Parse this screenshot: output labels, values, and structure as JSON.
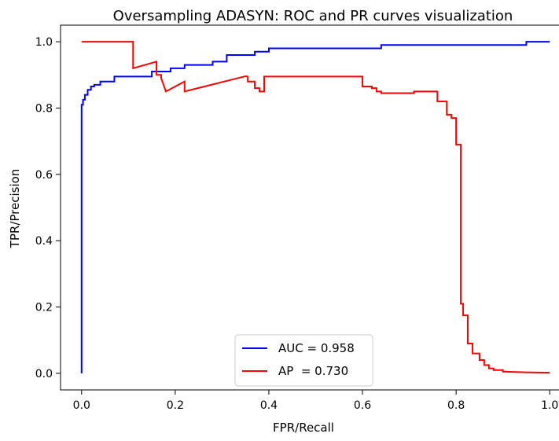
{
  "chart_data": {
    "type": "line",
    "title": "Oversampling ADASYN: ROC and PR curves visualization",
    "xlabel": "FPR/Recall",
    "ylabel": "TPR/Precision",
    "xlim": [
      -0.045,
      1.045
    ],
    "ylim": [
      -0.05,
      1.05
    ],
    "xticks": [
      0.0,
      0.2,
      0.4,
      0.6,
      0.8,
      1.0
    ],
    "xtick_labels": [
      "0.0",
      "0.2",
      "0.4",
      "0.6",
      "0.8",
      "1.0"
    ],
    "yticks": [
      0.0,
      0.2,
      0.4,
      0.6,
      0.8,
      1.0
    ],
    "ytick_labels": [
      "0.0",
      "0.2",
      "0.4",
      "0.6",
      "0.8",
      "1.0"
    ],
    "grid": false,
    "legend_position": "lower-center",
    "series": [
      {
        "name": "AUC = 0.958",
        "color": "#0000ff",
        "step": false,
        "x": [
          0.0,
          0.0,
          0.003,
          0.003,
          0.007,
          0.007,
          0.013,
          0.013,
          0.02,
          0.02,
          0.027,
          0.027,
          0.04,
          0.04,
          0.07,
          0.07,
          0.15,
          0.15,
          0.19,
          0.19,
          0.22,
          0.22,
          0.28,
          0.28,
          0.31,
          0.31,
          0.37,
          0.37,
          0.4,
          0.4,
          0.64,
          0.64,
          0.95,
          0.95,
          1.0
        ],
        "y": [
          0.0,
          0.81,
          0.81,
          0.825,
          0.825,
          0.84,
          0.84,
          0.855,
          0.855,
          0.865,
          0.865,
          0.87,
          0.87,
          0.88,
          0.88,
          0.895,
          0.895,
          0.91,
          0.91,
          0.92,
          0.92,
          0.93,
          0.93,
          0.94,
          0.94,
          0.96,
          0.96,
          0.97,
          0.97,
          0.98,
          0.98,
          0.99,
          0.99,
          1.0,
          1.0
        ]
      },
      {
        "name": "AP  = 0.730",
        "color": "#ff0000",
        "step": false,
        "x": [
          0.0,
          0.11,
          0.11,
          0.16,
          0.16,
          0.17,
          0.17,
          0.18,
          0.18,
          0.22,
          0.22,
          0.35,
          0.355,
          0.355,
          0.37,
          0.37,
          0.38,
          0.38,
          0.39,
          0.39,
          0.6,
          0.6,
          0.62,
          0.62,
          0.63,
          0.63,
          0.64,
          0.64,
          0.71,
          0.71,
          0.76,
          0.76,
          0.78,
          0.78,
          0.79,
          0.79,
          0.8,
          0.8,
          0.81,
          0.81,
          0.815,
          0.815,
          0.825,
          0.825,
          0.835,
          0.835,
          0.85,
          0.85,
          0.86,
          0.86,
          0.87,
          0.87,
          0.88,
          0.88,
          0.9,
          0.9,
          0.95,
          1.0
        ],
        "y": [
          1.0,
          1.0,
          0.92,
          0.94,
          0.9,
          0.9,
          0.89,
          0.85,
          0.85,
          0.88,
          0.85,
          0.896,
          0.895,
          0.88,
          0.88,
          0.86,
          0.86,
          0.85,
          0.85,
          0.895,
          0.895,
          0.865,
          0.865,
          0.86,
          0.86,
          0.85,
          0.85,
          0.845,
          0.845,
          0.85,
          0.85,
          0.82,
          0.82,
          0.78,
          0.78,
          0.77,
          0.77,
          0.69,
          0.69,
          0.21,
          0.21,
          0.175,
          0.175,
          0.09,
          0.09,
          0.06,
          0.06,
          0.04,
          0.04,
          0.025,
          0.025,
          0.015,
          0.015,
          0.01,
          0.01,
          0.005,
          0.003,
          0.002
        ]
      }
    ]
  }
}
